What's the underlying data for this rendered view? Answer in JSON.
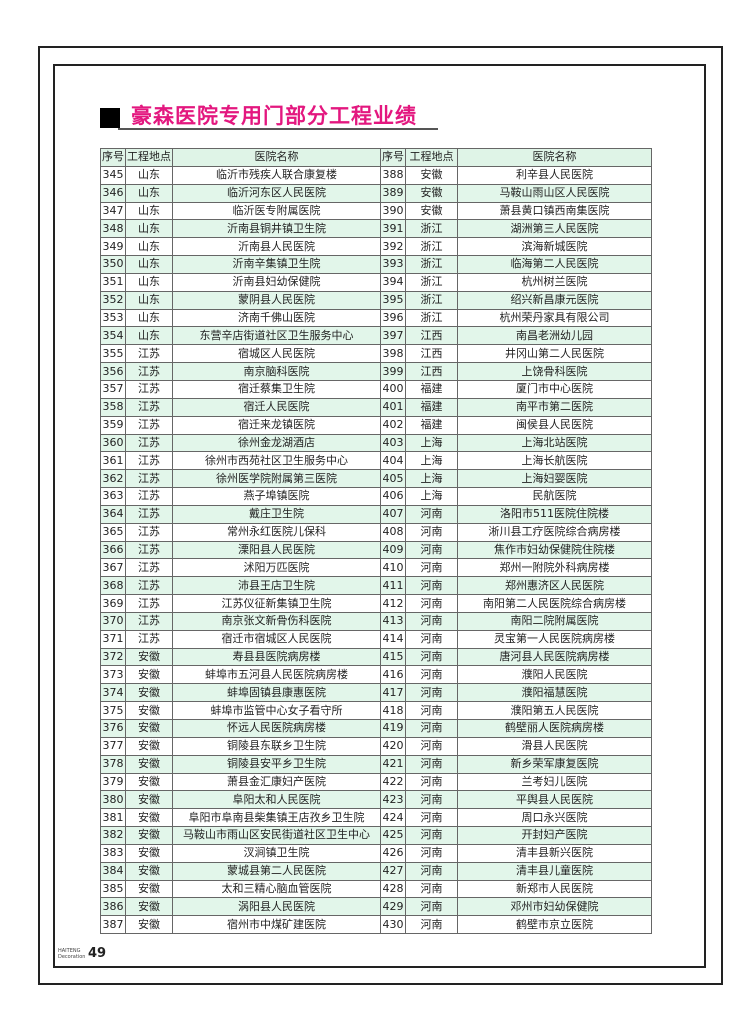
{
  "title": "豪森医院专用门部分工程业绩",
  "headers": [
    "序号",
    "工程地点",
    "医院名称",
    "序号",
    "工程地点",
    "医院名称"
  ],
  "rows": [
    [
      [
        "345",
        "山东",
        "临沂市残疾人联合康复楼"
      ],
      [
        "388",
        "安徽",
        "利辛县人民医院"
      ]
    ],
    [
      [
        "346",
        "山东",
        "临沂河东区人民医院"
      ],
      [
        "389",
        "安徽",
        "马鞍山雨山区人民医院"
      ]
    ],
    [
      [
        "347",
        "山东",
        "临沂医专附属医院"
      ],
      [
        "390",
        "安徽",
        "萧县黄口镇西南集医院"
      ]
    ],
    [
      [
        "348",
        "山东",
        "沂南县铜井镇卫生院"
      ],
      [
        "391",
        "浙江",
        "湖洲第三人民医院"
      ]
    ],
    [
      [
        "349",
        "山东",
        "沂南县人民医院"
      ],
      [
        "392",
        "浙江",
        "滨海新城医院"
      ]
    ],
    [
      [
        "350",
        "山东",
        "沂南辛集镇卫生院"
      ],
      [
        "393",
        "浙江",
        "临海第二人民医院"
      ]
    ],
    [
      [
        "351",
        "山东",
        "沂南县妇幼保健院"
      ],
      [
        "394",
        "浙江",
        "杭州树兰医院"
      ]
    ],
    [
      [
        "352",
        "山东",
        "蒙阴县人民医院"
      ],
      [
        "395",
        "浙江",
        "绍兴新昌康元医院"
      ]
    ],
    [
      [
        "353",
        "山东",
        "济南千佛山医院"
      ],
      [
        "396",
        "浙江",
        "杭州荣丹家具有限公司"
      ]
    ],
    [
      [
        "354",
        "山东",
        "东营辛店街道社区卫生服务中心"
      ],
      [
        "397",
        "江西",
        "南昌老洲幼儿园"
      ]
    ],
    [
      [
        "355",
        "江苏",
        "宿城区人民医院"
      ],
      [
        "398",
        "江西",
        "井冈山第二人民医院"
      ]
    ],
    [
      [
        "356",
        "江苏",
        "南京脑科医院"
      ],
      [
        "399",
        "江西",
        "上饶骨科医院"
      ]
    ],
    [
      [
        "357",
        "江苏",
        "宿迁蔡集卫生院"
      ],
      [
        "400",
        "福建",
        "厦门市中心医院"
      ]
    ],
    [
      [
        "358",
        "江苏",
        "宿迁人民医院"
      ],
      [
        "401",
        "福建",
        "南平市第二医院"
      ]
    ],
    [
      [
        "359",
        "江苏",
        "宿迁来龙镇医院"
      ],
      [
        "402",
        "福建",
        "闽侯县人民医院"
      ]
    ],
    [
      [
        "360",
        "江苏",
        "徐州金龙湖酒店"
      ],
      [
        "403",
        "上海",
        "上海北站医院"
      ]
    ],
    [
      [
        "361",
        "江苏",
        "徐州市西苑社区卫生服务中心"
      ],
      [
        "404",
        "上海",
        "上海长航医院"
      ]
    ],
    [
      [
        "362",
        "江苏",
        "徐州医学院附属第三医院"
      ],
      [
        "405",
        "上海",
        "上海妇婴医院"
      ]
    ],
    [
      [
        "363",
        "江苏",
        "燕子埠镇医院"
      ],
      [
        "406",
        "上海",
        "民航医院"
      ]
    ],
    [
      [
        "364",
        "江苏",
        "戴庄卫生院"
      ],
      [
        "407",
        "河南",
        "洛阳市511医院住院楼"
      ]
    ],
    [
      [
        "365",
        "江苏",
        "常州永红医院儿保科"
      ],
      [
        "408",
        "河南",
        "淅川县工疗医院综合病房楼"
      ]
    ],
    [
      [
        "366",
        "江苏",
        "溧阳县人民医院"
      ],
      [
        "409",
        "河南",
        "焦作市妇幼保健院住院楼"
      ]
    ],
    [
      [
        "367",
        "江苏",
        "沭阳万匹医院"
      ],
      [
        "410",
        "河南",
        "郑州一附院外科病房楼"
      ]
    ],
    [
      [
        "368",
        "江苏",
        "沛县王店卫生院"
      ],
      [
        "411",
        "河南",
        "郑州惠济区人民医院"
      ]
    ],
    [
      [
        "369",
        "江苏",
        "江苏仪征新集镇卫生院"
      ],
      [
        "412",
        "河南",
        "南阳第二人民医院综合病房楼"
      ]
    ],
    [
      [
        "370",
        "江苏",
        "南京张文新骨伤科医院"
      ],
      [
        "413",
        "河南",
        "南阳二院附属医院"
      ]
    ],
    [
      [
        "371",
        "江苏",
        "宿迁市宿城区人民医院"
      ],
      [
        "414",
        "河南",
        "灵宝第一人民医院病房楼"
      ]
    ],
    [
      [
        "372",
        "安徽",
        "寿县县医院病房楼"
      ],
      [
        "415",
        "河南",
        "唐河县人民医院病房楼"
      ]
    ],
    [
      [
        "373",
        "安徽",
        "蚌埠市五河县人民医院病房楼"
      ],
      [
        "416",
        "河南",
        "濮阳人民医院"
      ]
    ],
    [
      [
        "374",
        "安徽",
        "蚌埠固镇县康惠医院"
      ],
      [
        "417",
        "河南",
        "濮阳福慧医院"
      ]
    ],
    [
      [
        "375",
        "安徽",
        "蚌埠市监管中心女子看守所"
      ],
      [
        "418",
        "河南",
        "濮阳第五人民医院"
      ]
    ],
    [
      [
        "376",
        "安徽",
        "怀远人民医院病房楼"
      ],
      [
        "419",
        "河南",
        "鹤壁丽人医院病房楼"
      ]
    ],
    [
      [
        "377",
        "安徽",
        "铜陵县东联乡卫生院"
      ],
      [
        "420",
        "河南",
        "滑县人民医院"
      ]
    ],
    [
      [
        "378",
        "安徽",
        "铜陵县安平乡卫生院"
      ],
      [
        "421",
        "河南",
        "新乡荣军康复医院"
      ]
    ],
    [
      [
        "379",
        "安徽",
        "萧县金汇康妇产医院"
      ],
      [
        "422",
        "河南",
        "兰考妇儿医院"
      ]
    ],
    [
      [
        "380",
        "安徽",
        "阜阳太和人民医院"
      ],
      [
        "423",
        "河南",
        "平舆县人民医院"
      ]
    ],
    [
      [
        "381",
        "安徽",
        "阜阳市阜南县柴集镇王店孜乡卫生院"
      ],
      [
        "424",
        "河南",
        "周口永兴医院"
      ]
    ],
    [
      [
        "382",
        "安徽",
        "马鞍山市雨山区安民街道社区卫生中心"
      ],
      [
        "425",
        "河南",
        "开封妇产医院"
      ]
    ],
    [
      [
        "383",
        "安徽",
        "汊涧镇卫生院"
      ],
      [
        "426",
        "河南",
        "清丰县新兴医院"
      ]
    ],
    [
      [
        "384",
        "安徽",
        "蒙城县第二人民医院"
      ],
      [
        "427",
        "河南",
        "清丰县儿童医院"
      ]
    ],
    [
      [
        "385",
        "安徽",
        "太和三精心脑血管医院"
      ],
      [
        "428",
        "河南",
        "新郑市人民医院"
      ]
    ],
    [
      [
        "386",
        "安徽",
        "涡阳县人民医院"
      ],
      [
        "429",
        "河南",
        "邓州市妇幼保健院"
      ]
    ],
    [
      [
        "387",
        "安徽",
        "宿州市中煤矿建医院"
      ],
      [
        "430",
        "河南",
        "鹤壁市京立医院"
      ]
    ]
  ],
  "footer": {
    "brand": "HAITENG Decoration",
    "page_number": "49"
  },
  "colors": {
    "title": "#e3177f",
    "row_highlight": "#e2f6ea"
  }
}
